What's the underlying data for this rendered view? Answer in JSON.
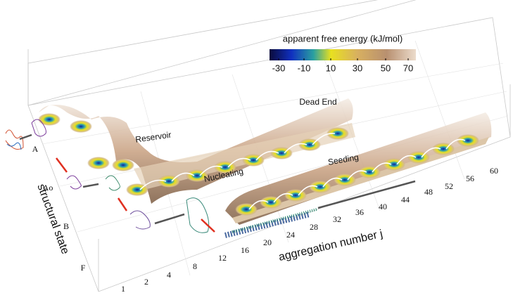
{
  "colorbar": {
    "title": "apparent free energy (kJ/mol)",
    "ticks": [
      "-30",
      "-10",
      "10",
      "30",
      "50",
      "70"
    ]
  },
  "x_axis": {
    "label": "aggregation number j",
    "ticks": [
      "1",
      "2",
      "4",
      "8",
      "12",
      "16",
      "20",
      "24",
      "28",
      "32",
      "36",
      "40",
      "44",
      "48",
      "52",
      "56",
      "60"
    ]
  },
  "y_axis": {
    "label": "structural state",
    "ticks": [
      "A",
      "Ao",
      "B",
      "F"
    ]
  },
  "annotations": [
    "Reservoir",
    "Dead End",
    "Nucleating",
    "Seeding"
  ]
}
